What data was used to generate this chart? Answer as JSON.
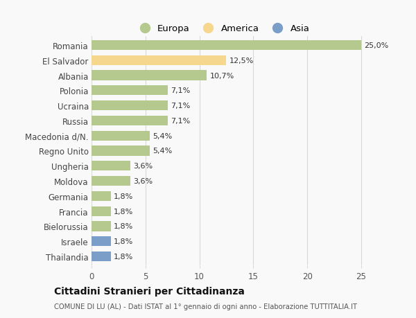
{
  "categories": [
    "Romania",
    "El Salvador",
    "Albania",
    "Polonia",
    "Ucraina",
    "Russia",
    "Macedonia d/N.",
    "Regno Unito",
    "Ungheria",
    "Moldova",
    "Germania",
    "Francia",
    "Bielorussia",
    "Israele",
    "Thailandia"
  ],
  "values": [
    25.0,
    12.5,
    10.7,
    7.1,
    7.1,
    7.1,
    5.4,
    5.4,
    3.6,
    3.6,
    1.8,
    1.8,
    1.8,
    1.8,
    1.8
  ],
  "labels": [
    "25,0%",
    "12,5%",
    "10,7%",
    "7,1%",
    "7,1%",
    "7,1%",
    "5,4%",
    "5,4%",
    "3,6%",
    "3,6%",
    "1,8%",
    "1,8%",
    "1,8%",
    "1,8%",
    "1,8%"
  ],
  "colors": [
    "#b5c98e",
    "#f5d78e",
    "#b5c98e",
    "#b5c98e",
    "#b5c98e",
    "#b5c98e",
    "#b5c98e",
    "#b5c98e",
    "#b5c98e",
    "#b5c98e",
    "#b5c98e",
    "#b5c98e",
    "#b5c98e",
    "#7b9ec9",
    "#7b9ec9"
  ],
  "continent_colors": {
    "Europa": "#b5c98e",
    "America": "#f5d78e",
    "Asia": "#7b9ec9"
  },
  "legend_labels": [
    "Europa",
    "America",
    "Asia"
  ],
  "xlim": [
    0,
    27
  ],
  "xticks": [
    0,
    5,
    10,
    15,
    20,
    25
  ],
  "title": "Cittadini Stranieri per Cittadinanza",
  "subtitle": "COMUNE DI LU (AL) - Dati ISTAT al 1° gennaio di ogni anno - Elaborazione TUTTITALIA.IT",
  "bg_color": "#f9f9f9",
  "grid_color": "#d8d8d8",
  "bar_height": 0.65
}
